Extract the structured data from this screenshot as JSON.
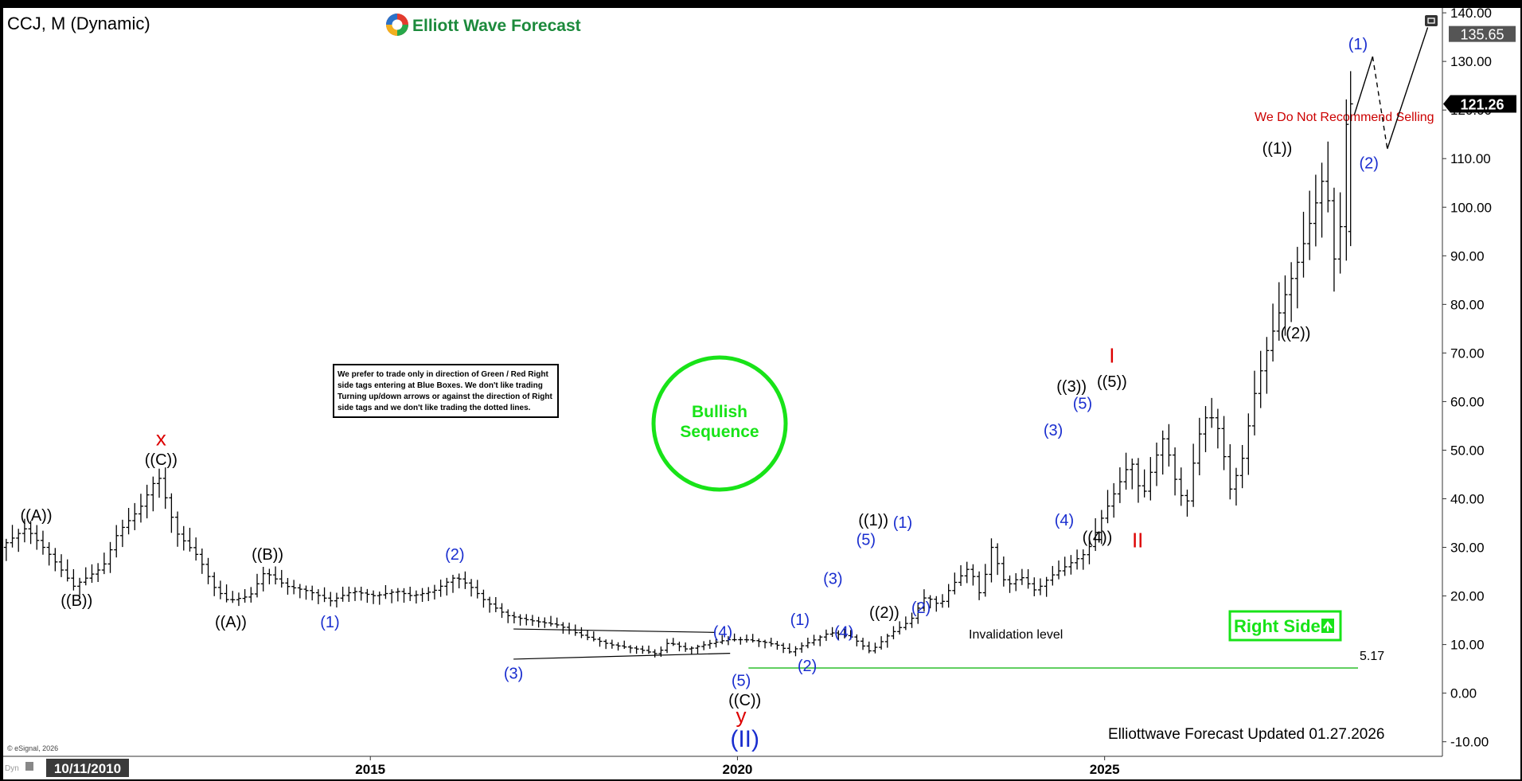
{
  "header": {
    "symbol_title": "CCJ, M (Dynamic)",
    "brand": "Elliott Wave Forecast",
    "restore_icon": "window-restore-icon"
  },
  "notice_box": {
    "lines": [
      "We prefer to trade only in direction of Green / Red Right",
      "side tags entering at Blue Boxes. We don't like trading",
      "Turning up/down arrows or against the direction of Right",
      "side tags and we don't like trading the dotted lines."
    ]
  },
  "badge": {
    "line1": "Bullish",
    "line2": "Sequence",
    "color": "#18e318"
  },
  "right_side_tag": {
    "label": "Right Side",
    "color": "#18e318",
    "icon": "arrow-up-icon"
  },
  "invalidation": {
    "label": "Invalidation level",
    "value": 5.17,
    "value_label": "5.17",
    "color": "#3cc43c"
  },
  "projection_note": {
    "text": "We Do Not Recommend Selling",
    "color": "#cc0000"
  },
  "footer": {
    "updated": "Elliottwave Forecast Updated 01.27.2026",
    "copyright": "© eSignal, 2026",
    "mode": "Dyn",
    "date_box": "10/11/2010"
  },
  "price_tags": [
    {
      "label": "135.65",
      "value": 135.65
    },
    {
      "label": "121.26",
      "value": 121.26
    }
  ],
  "chart_data": {
    "type": "bar",
    "style": "ohlc",
    "ylim": [
      -13,
      141
    ],
    "y_ticks": [
      {
        "value": 140,
        "label": "140.00"
      },
      {
        "value": 130,
        "label": "130.00"
      },
      {
        "value": 120,
        "label": "120.00"
      },
      {
        "value": 110,
        "label": "110.00"
      },
      {
        "value": 100,
        "label": "100.00"
      },
      {
        "value": 90,
        "label": "90.00"
      },
      {
        "value": 80,
        "label": "80.00"
      },
      {
        "value": 70,
        "label": "70.00"
      },
      {
        "value": 60,
        "label": "60.00"
      },
      {
        "value": 50,
        "label": "50.00"
      },
      {
        "value": 40,
        "label": "40.00"
      },
      {
        "value": 30,
        "label": "30.00"
      },
      {
        "value": 20,
        "label": "20.00"
      },
      {
        "value": 10,
        "label": "10.00"
      },
      {
        "value": 0,
        "label": "0.00"
      },
      {
        "value": -10,
        "label": "-10.00"
      }
    ],
    "xlim": [
      2010.0,
      2029.6
    ],
    "x_ticks": [
      {
        "value": 2015,
        "label": "2015"
      },
      {
        "value": 2020,
        "label": "2020"
      },
      {
        "value": 2025,
        "label": "2025"
      }
    ],
    "anchors": [
      [
        2010.0,
        30
      ],
      [
        2010.35,
        34
      ],
      [
        2010.7,
        28
      ],
      [
        2011.0,
        22
      ],
      [
        2011.4,
        26
      ],
      [
        2011.6,
        33
      ],
      [
        2011.9,
        38
      ],
      [
        2012.15,
        45
      ],
      [
        2012.4,
        33
      ],
      [
        2012.7,
        28
      ],
      [
        2012.9,
        22
      ],
      [
        2013.1,
        19
      ],
      [
        2013.4,
        20
      ],
      [
        2013.6,
        25
      ],
      [
        2013.9,
        22
      ],
      [
        2014.2,
        21
      ],
      [
        2014.5,
        19
      ],
      [
        2014.8,
        21
      ],
      [
        2015.1,
        20
      ],
      [
        2015.4,
        21
      ],
      [
        2015.6,
        20
      ],
      [
        2015.9,
        21
      ],
      [
        2016.2,
        24
      ],
      [
        2016.4,
        22
      ],
      [
        2016.6,
        19
      ],
      [
        2016.9,
        16
      ],
      [
        2017.2,
        15
      ],
      [
        2017.6,
        14
      ],
      [
        2017.9,
        12
      ],
      [
        2018.3,
        10
      ],
      [
        2018.7,
        9
      ],
      [
        2018.95,
        8
      ],
      [
        2019.1,
        10.5
      ],
      [
        2019.35,
        9
      ],
      [
        2019.6,
        10
      ],
      [
        2019.9,
        11
      ],
      [
        2020.15,
        11
      ],
      [
        2020.4,
        10.5
      ],
      [
        2020.6,
        9.8
      ],
      [
        2020.75,
        8.5
      ],
      [
        2020.95,
        10
      ],
      [
        2021.3,
        12.5
      ],
      [
        2021.6,
        11.5
      ],
      [
        2021.85,
        8.5
      ],
      [
        2022.1,
        12
      ],
      [
        2022.4,
        15
      ],
      [
        2022.6,
        20
      ],
      [
        2022.8,
        18
      ],
      [
        2022.95,
        22
      ],
      [
        2023.2,
        26
      ],
      [
        2023.35,
        20
      ],
      [
        2023.5,
        30
      ],
      [
        2023.7,
        22
      ],
      [
        2023.9,
        24
      ],
      [
        2024.1,
        21
      ],
      [
        2024.3,
        24
      ],
      [
        2024.5,
        26
      ],
      [
        2024.8,
        29
      ],
      [
        2025.0,
        36
      ],
      [
        2025.2,
        42
      ],
      [
        2025.4,
        48
      ],
      [
        2025.55,
        40
      ],
      [
        2025.7,
        47
      ],
      [
        2025.85,
        53
      ],
      [
        2026.0,
        44
      ],
      [
        2026.15,
        38
      ],
      [
        2026.3,
        52
      ],
      [
        2026.45,
        58
      ],
      [
        2026.6,
        54
      ],
      [
        2026.75,
        42
      ],
      [
        2026.9,
        47
      ],
      [
        2027.1,
        63
      ],
      [
        2027.3,
        73
      ],
      [
        2027.5,
        82
      ],
      [
        2027.7,
        90
      ],
      [
        2027.9,
        100
      ],
      [
        2028.05,
        108
      ],
      [
        2028.15,
        88
      ],
      [
        2028.25,
        96
      ],
      [
        2028.35,
        121.26
      ]
    ],
    "last_bar": {
      "x": 2028.35,
      "open": 95,
      "high": 128,
      "low": 92,
      "close": 121.26
    },
    "triangle": {
      "upper": [
        [
          2016.95,
          13.2
        ],
        [
          2019.7,
          12.5
        ]
      ],
      "lower": [
        [
          2016.95,
          7.0
        ],
        [
          2019.9,
          8.2
        ]
      ]
    },
    "projection": [
      {
        "x1": 2028.4,
        "y1": 119,
        "x2": 2028.65,
        "y2": 131,
        "dash": false
      },
      {
        "x1": 2028.65,
        "y1": 131,
        "x2": 2028.85,
        "y2": 112,
        "dash": true
      },
      {
        "x1": 2028.85,
        "y1": 112,
        "x2": 2029.4,
        "y2": 137,
        "dash": false
      }
    ],
    "wave_labels": [
      {
        "text": "((A))",
        "x": 2010.45,
        "y": 35.5,
        "color": "black"
      },
      {
        "text": "((B))",
        "x": 2011.0,
        "y": 18,
        "color": "black"
      },
      {
        "text": "((C))",
        "x": 2012.15,
        "y": 47,
        "color": "black"
      },
      {
        "text": "x",
        "x": 2012.15,
        "y": 51,
        "color": "red"
      },
      {
        "text": "((A))",
        "x": 2013.1,
        "y": 13.5,
        "color": "black"
      },
      {
        "text": "((B))",
        "x": 2013.6,
        "y": 27.5,
        "color": "black"
      },
      {
        "text": "(1)",
        "x": 2014.45,
        "y": 13.5,
        "color": "blue"
      },
      {
        "text": "(2)",
        "x": 2016.15,
        "y": 27.5,
        "color": "blue"
      },
      {
        "text": "(3)",
        "x": 2016.95,
        "y": 3,
        "color": "blue"
      },
      {
        "text": "(4)",
        "x": 2019.8,
        "y": 11.5,
        "color": "blue"
      },
      {
        "text": "(5)",
        "x": 2020.05,
        "y": 1.5,
        "color": "blue"
      },
      {
        "text": "((C))",
        "x": 2020.1,
        "y": -2.5,
        "color": "black"
      },
      {
        "text": "y",
        "x": 2020.05,
        "y": -6,
        "color": "red"
      },
      {
        "text": "(II)",
        "x": 2020.1,
        "y": -11,
        "color": "blue",
        "big": true
      },
      {
        "text": "(1)",
        "x": 2020.85,
        "y": 14,
        "color": "blue"
      },
      {
        "text": "(2)",
        "x": 2020.95,
        "y": 4.5,
        "color": "blue"
      },
      {
        "text": "(3)",
        "x": 2021.3,
        "y": 22.5,
        "color": "blue"
      },
      {
        "text": "(4)",
        "x": 2021.45,
        "y": 11.5,
        "color": "blue"
      },
      {
        "text": "(5)",
        "x": 2021.75,
        "y": 30.5,
        "color": "blue"
      },
      {
        "text": "((1))",
        "x": 2021.85,
        "y": 34.5,
        "color": "black"
      },
      {
        "text": "((2))",
        "x": 2022.0,
        "y": 15.5,
        "color": "black"
      },
      {
        "text": "(1)",
        "x": 2022.25,
        "y": 34,
        "color": "blue"
      },
      {
        "text": "(2)",
        "x": 2022.5,
        "y": 16.5,
        "color": "blue"
      },
      {
        "text": "(3)",
        "x": 2024.3,
        "y": 53,
        "color": "blue"
      },
      {
        "text": "(4)",
        "x": 2024.45,
        "y": 34.5,
        "color": "blue"
      },
      {
        "text": "((3))",
        "x": 2024.55,
        "y": 62,
        "color": "black"
      },
      {
        "text": "(5)",
        "x": 2024.7,
        "y": 58.5,
        "color": "blue"
      },
      {
        "text": "((4))",
        "x": 2024.9,
        "y": 31,
        "color": "black"
      },
      {
        "text": "((5))",
        "x": 2025.1,
        "y": 63,
        "color": "black"
      },
      {
        "text": "I",
        "x": 2025.1,
        "y": 68,
        "color": "red"
      },
      {
        "text": "II",
        "x": 2025.45,
        "y": 30,
        "color": "red"
      },
      {
        "text": "((1))",
        "x": 2027.35,
        "y": 111,
        "color": "black"
      },
      {
        "text": "((2))",
        "x": 2027.6,
        "y": 73,
        "color": "black"
      },
      {
        "text": "(1)",
        "x": 2028.45,
        "y": 132.5,
        "color": "blue"
      },
      {
        "text": "(2)",
        "x": 2028.6,
        "y": 108,
        "color": "blue"
      }
    ]
  }
}
